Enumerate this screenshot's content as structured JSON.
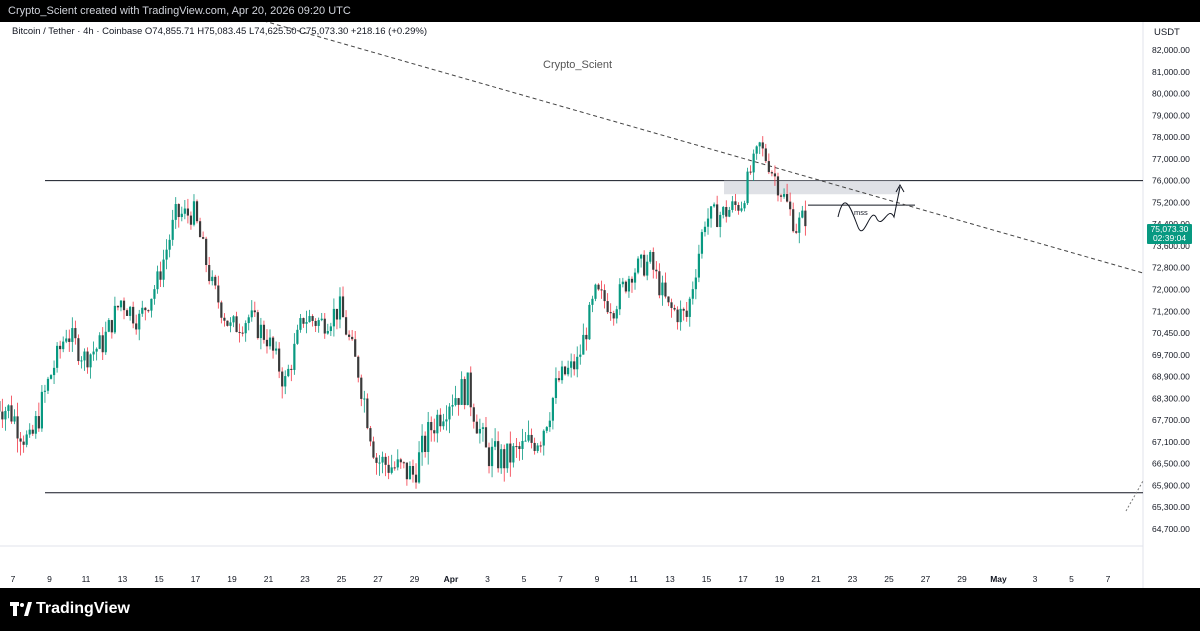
{
  "header": {
    "credit": "Crypto_Scient created with TradingView.com, Apr 20, 2026 09:20 UTC"
  },
  "legend": {
    "symbol": "Bitcoin / Tether · 4h · Coinbase",
    "open": "O74,855.71",
    "high": "H75,083.45",
    "low": "L74,625.50",
    "close": "C75,073.30",
    "change": "+218.16 (+0.29%)"
  },
  "watermark": "Crypto_Scient",
  "footer": {
    "brand": "TradingView"
  },
  "colors": {
    "up": "#089981",
    "down": "#f23645",
    "candle_dark": "#3a3a3a",
    "axis_text": "#131722",
    "price_tag": "#089981"
  },
  "chart_data": {
    "type": "candlestick",
    "unit": "USDT",
    "y_ticks": [
      82000,
      81000,
      80000,
      79000,
      78000,
      77000,
      76000,
      75200,
      74400,
      73600,
      72800,
      72000,
      71200,
      70450,
      69700,
      68900,
      68300,
      67700,
      67100,
      66500,
      65900,
      65300,
      64700
    ],
    "y_tick_labels": [
      "82,000.00",
      "81,000.00",
      "80,000.00",
      "79,000.00",
      "78,000.00",
      "77,000.00",
      "76,000.00",
      "75,200.00",
      "74,400.00",
      "73,600.00",
      "72,800.00",
      "72,000.00",
      "71,200.00",
      "70,450.00",
      "69,700.00",
      "68,900.00",
      "68,300.00",
      "67,700.00",
      "67,100.00",
      "66,500.00",
      "65,900.00",
      "65,300.00",
      "64,700.00"
    ],
    "x_ticks": [
      "7",
      "9",
      "11",
      "13",
      "15",
      "17",
      "19",
      "21",
      "23",
      "25",
      "27",
      "29",
      "Apr",
      "3",
      "5",
      "7",
      "9",
      "11",
      "13",
      "15",
      "17",
      "19",
      "21",
      "23",
      "25",
      "27",
      "29",
      "May",
      "3",
      "5",
      "7"
    ],
    "last_price": "75,073.30",
    "countdown": "02:39:04",
    "daily_closes": [
      {
        "date": "Mar 6",
        "close": 68300
      },
      {
        "date": "Mar 7",
        "close": 67900
      },
      {
        "date": "Mar 8",
        "close": 67000
      },
      {
        "date": "Mar 9",
        "close": 68700
      },
      {
        "date": "Mar 10",
        "close": 70500
      },
      {
        "date": "Mar 11",
        "close": 69600
      },
      {
        "date": "Mar 12",
        "close": 70100
      },
      {
        "date": "Mar 13",
        "close": 71600
      },
      {
        "date": "Mar 14",
        "close": 70900
      },
      {
        "date": "Mar 15",
        "close": 72300
      },
      {
        "date": "Mar 16",
        "close": 74700
      },
      {
        "date": "Mar 17",
        "close": 74800
      },
      {
        "date": "Mar 18",
        "close": 72100
      },
      {
        "date": "Mar 19",
        "close": 70600
      },
      {
        "date": "Mar 20",
        "close": 71000
      },
      {
        "date": "Mar 21",
        "close": 70300
      },
      {
        "date": "Mar 22",
        "close": 68700
      },
      {
        "date": "Mar 23",
        "close": 71000
      },
      {
        "date": "Mar 24",
        "close": 70800
      },
      {
        "date": "Mar 25",
        "close": 71300
      },
      {
        "date": "Mar 26",
        "close": 69100
      },
      {
        "date": "Mar 27",
        "close": 66600
      },
      {
        "date": "Mar 28",
        "close": 66400
      },
      {
        "date": "Mar 29",
        "close": 66200
      },
      {
        "date": "Mar 30",
        "close": 67500
      },
      {
        "date": "Mar 31",
        "close": 68300
      },
      {
        "date": "Apr 1",
        "close": 68600
      },
      {
        "date": "Apr 2",
        "close": 66800
      },
      {
        "date": "Apr 3",
        "close": 66600
      },
      {
        "date": "Apr 4",
        "close": 66900
      },
      {
        "date": "Apr 5",
        "close": 67300
      },
      {
        "date": "Apr 6",
        "close": 68800
      },
      {
        "date": "Apr 7",
        "close": 69400
      },
      {
        "date": "Apr 8",
        "close": 71800
      },
      {
        "date": "Apr 9",
        "close": 71400
      },
      {
        "date": "Apr 10",
        "close": 72700
      },
      {
        "date": "Apr 11",
        "close": 73000
      },
      {
        "date": "Apr 12",
        "close": 71300
      },
      {
        "date": "Apr 13",
        "close": 71000
      },
      {
        "date": "Apr 14",
        "close": 74600
      },
      {
        "date": "Apr 15",
        "close": 74800
      },
      {
        "date": "Apr 16",
        "close": 75200
      },
      {
        "date": "Apr 17",
        "close": 77600
      },
      {
        "date": "Apr 18",
        "close": 75900
      },
      {
        "date": "Apr 19",
        "close": 74300
      },
      {
        "date": "Apr 20",
        "close": 75073
      }
    ],
    "annotations": {
      "resistance_level": 76000,
      "support_level": 65700,
      "mss_label": "mss",
      "mss_level": 75100,
      "zone_top": 76000,
      "zone_bottom": 75500,
      "trendline": "dashed descending trendline",
      "projection": "curved path with upward arrow"
    },
    "grid": false,
    "legend_position": "top-left"
  }
}
